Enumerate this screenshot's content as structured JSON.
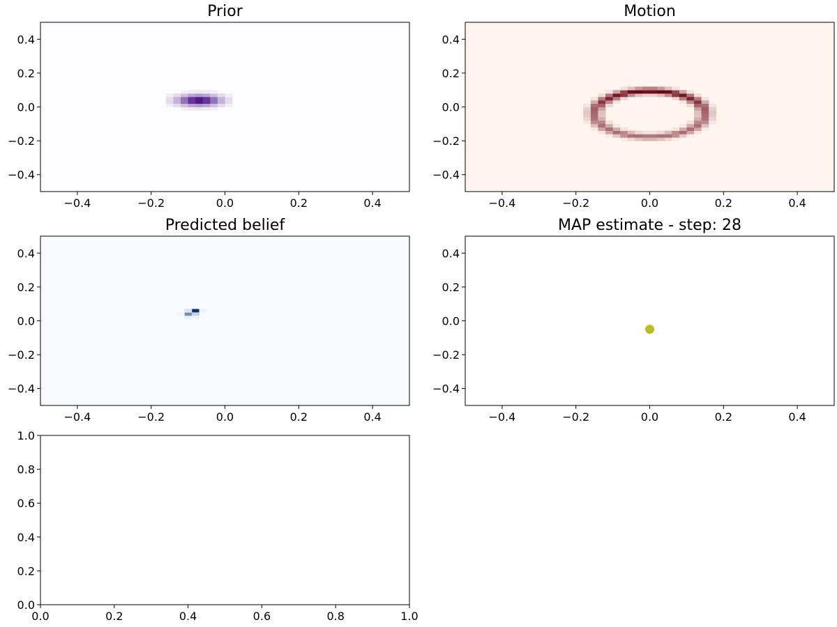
{
  "chart_data": [
    {
      "type": "heatmap",
      "title": "Prior",
      "xlim": [
        -0.5,
        0.5
      ],
      "ylim": [
        -0.5,
        0.5
      ],
      "xticks": [
        -0.4,
        -0.2,
        0.0,
        0.2,
        0.4
      ],
      "yticks": [
        -0.4,
        -0.2,
        0.0,
        0.2,
        0.4
      ],
      "xtick_labels": [
        "−0.4",
        "−0.2",
        "0.0",
        "0.2",
        "0.4"
      ],
      "ytick_labels": [
        "−0.4",
        "−0.2",
        "0.0",
        "0.2",
        "0.4"
      ],
      "colormap": "Purples",
      "colors": {
        "low": "#fcfbfd",
        "high": "#3f007d"
      },
      "distribution": {
        "shape": "gaussian",
        "center": [
          -0.07,
          0.04
        ],
        "sigma": [
          0.04,
          0.022
        ]
      },
      "grid": false
    },
    {
      "type": "heatmap",
      "title": "Motion",
      "xlim": [
        -0.5,
        0.5
      ],
      "ylim": [
        -0.5,
        0.5
      ],
      "xticks": [
        -0.4,
        -0.2,
        0.0,
        0.2,
        0.4
      ],
      "yticks": [
        -0.4,
        -0.2,
        0.0,
        0.2,
        0.4
      ],
      "xtick_labels": [
        "−0.4",
        "−0.2",
        "0.0",
        "0.2",
        "0.4"
      ],
      "ytick_labels": [
        "−0.4",
        "−0.2",
        "0.0",
        "0.2",
        "0.4"
      ],
      "colormap": "Reds",
      "colors": {
        "low": "#fff5f0",
        "high": "#67000d"
      },
      "distribution": {
        "shape": "ring",
        "center": [
          0.0,
          -0.04
        ],
        "radius": [
          0.15,
          0.14
        ],
        "peak_at": "top"
      },
      "grid": false
    },
    {
      "type": "heatmap",
      "title": "Predicted belief",
      "xlim": [
        -0.5,
        0.5
      ],
      "ylim": [
        -0.5,
        0.5
      ],
      "xticks": [
        -0.4,
        -0.2,
        0.0,
        0.2,
        0.4
      ],
      "yticks": [
        -0.4,
        -0.2,
        0.0,
        0.2,
        0.4
      ],
      "xtick_labels": [
        "−0.4",
        "−0.2",
        "0.0",
        "0.2",
        "0.4"
      ],
      "ytick_labels": [
        "−0.4",
        "−0.2",
        "0.0",
        "0.2",
        "0.4"
      ],
      "colormap": "Blues",
      "colors": {
        "low": "#f7fbff",
        "high": "#08306b"
      },
      "cells": [
        {
          "x": -0.08,
          "y": 0.06,
          "value": 1.0
        },
        {
          "x": -0.1,
          "y": 0.04,
          "value": 0.55
        },
        {
          "x": -0.08,
          "y": 0.04,
          "value": 0.2
        },
        {
          "x": -0.1,
          "y": 0.06,
          "value": 0.12
        },
        {
          "x": -0.1,
          "y": 0.02,
          "value": 0.06
        },
        {
          "x": -0.08,
          "y": 0.02,
          "value": 0.04
        },
        {
          "x": -0.06,
          "y": 0.06,
          "value": 0.05
        },
        {
          "x": -0.12,
          "y": 0.04,
          "value": 0.03
        }
      ],
      "grid": false
    },
    {
      "type": "scatter",
      "title": "MAP estimate - step: 28",
      "xlim": [
        -0.5,
        0.5
      ],
      "ylim": [
        -0.5,
        0.5
      ],
      "xticks": [
        -0.4,
        -0.2,
        0.0,
        0.2,
        0.4
      ],
      "yticks": [
        -0.4,
        -0.2,
        0.0,
        0.2,
        0.4
      ],
      "xtick_labels": [
        "−0.4",
        "−0.2",
        "0.0",
        "0.2",
        "0.4"
      ],
      "ytick_labels": [
        "−0.4",
        "−0.2",
        "0.0",
        "0.2",
        "0.4"
      ],
      "points": [
        {
          "x": 0.0,
          "y": -0.05
        }
      ],
      "colors": {
        "point": "#bcbd22"
      },
      "grid": false
    },
    {
      "type": "line",
      "title": "",
      "xlim": [
        0.0,
        1.0
      ],
      "ylim": [
        0.0,
        1.0
      ],
      "xticks": [
        0.0,
        0.2,
        0.4,
        0.6,
        0.8,
        1.0
      ],
      "yticks": [
        0.0,
        0.2,
        0.4,
        0.6,
        0.8,
        1.0
      ],
      "xtick_labels": [
        "0.0",
        "0.2",
        "0.4",
        "0.6",
        "0.8",
        "1.0"
      ],
      "ytick_labels": [
        "0.0",
        "0.2",
        "0.4",
        "0.6",
        "0.8",
        "1.0"
      ],
      "series": [],
      "grid": false
    }
  ]
}
